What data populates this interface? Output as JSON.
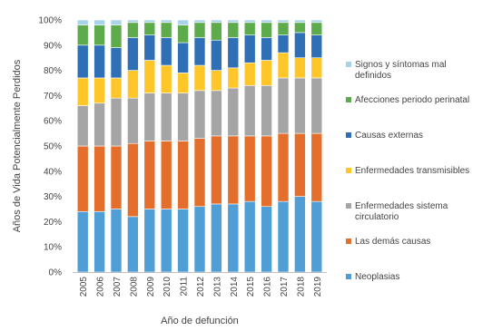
{
  "chart_data": {
    "type": "bar",
    "stacked": true,
    "percent_stacked": true,
    "xlabel": "Año de defunción",
    "ylabel": "Años de Vida Potencialmente Perdidos",
    "ylim": [
      0,
      100
    ],
    "ytick_labels": [
      "0%",
      "10%",
      "20%",
      "30%",
      "40%",
      "50%",
      "60%",
      "70%",
      "80%",
      "90%",
      "100%"
    ],
    "categories": [
      "2005",
      "2006",
      "2007",
      "2008",
      "2009",
      "2010",
      "2011",
      "2012",
      "2013",
      "2014",
      "2015",
      "2016",
      "2017",
      "2018",
      "2019"
    ],
    "grid": false,
    "legend_position": "right",
    "series": [
      {
        "name": "Neoplasias",
        "color": "#4f9ed6",
        "values": [
          24,
          24,
          25,
          22,
          25,
          25,
          25,
          26,
          27,
          27,
          28,
          26,
          28,
          30,
          28
        ]
      },
      {
        "name": "Las demás causas",
        "color": "#e46f2c",
        "values": [
          26,
          26,
          25,
          29,
          27,
          27,
          27,
          27,
          27,
          27,
          26,
          28,
          27,
          25,
          27
        ]
      },
      {
        "name": "Enfermedades sistema circulatorio",
        "color": "#a5a5a5",
        "values": [
          16,
          17,
          19,
          18,
          19,
          19,
          19,
          19,
          18,
          19,
          20,
          20,
          22,
          22,
          22
        ]
      },
      {
        "name": "Enfermedades transmisibles",
        "color": "#ffc62a",
        "values": [
          11,
          10,
          8,
          11,
          13,
          11,
          8,
          10,
          8,
          8,
          9,
          10,
          10,
          8,
          8
        ]
      },
      {
        "name": "Causas externas",
        "color": "#2e6fb5",
        "values": [
          13,
          13,
          12,
          13,
          10,
          11,
          12,
          11,
          12,
          12,
          11,
          9,
          7,
          10,
          9
        ]
      },
      {
        "name": "Afecciones periodo perinatal",
        "color": "#5dab4b",
        "values": [
          8,
          8,
          9,
          6,
          5,
          6,
          7,
          6,
          7,
          6,
          5,
          6,
          5,
          4,
          5
        ]
      },
      {
        "name": "Signos y síntomas mal definidos",
        "color": "#a8d3ea",
        "values": [
          2,
          2,
          2,
          1,
          1,
          1,
          2,
          1,
          1,
          1,
          1,
          1,
          1,
          1,
          1
        ]
      }
    ],
    "legend": [
      "Signos y síntomas mal definidos",
      "Afecciones periodo perinatal",
      "Causas externas",
      "Enfermedades transmisibles",
      "Enfermedades sistema circulatorio",
      "Las demás causas",
      "Neoplasias"
    ]
  }
}
